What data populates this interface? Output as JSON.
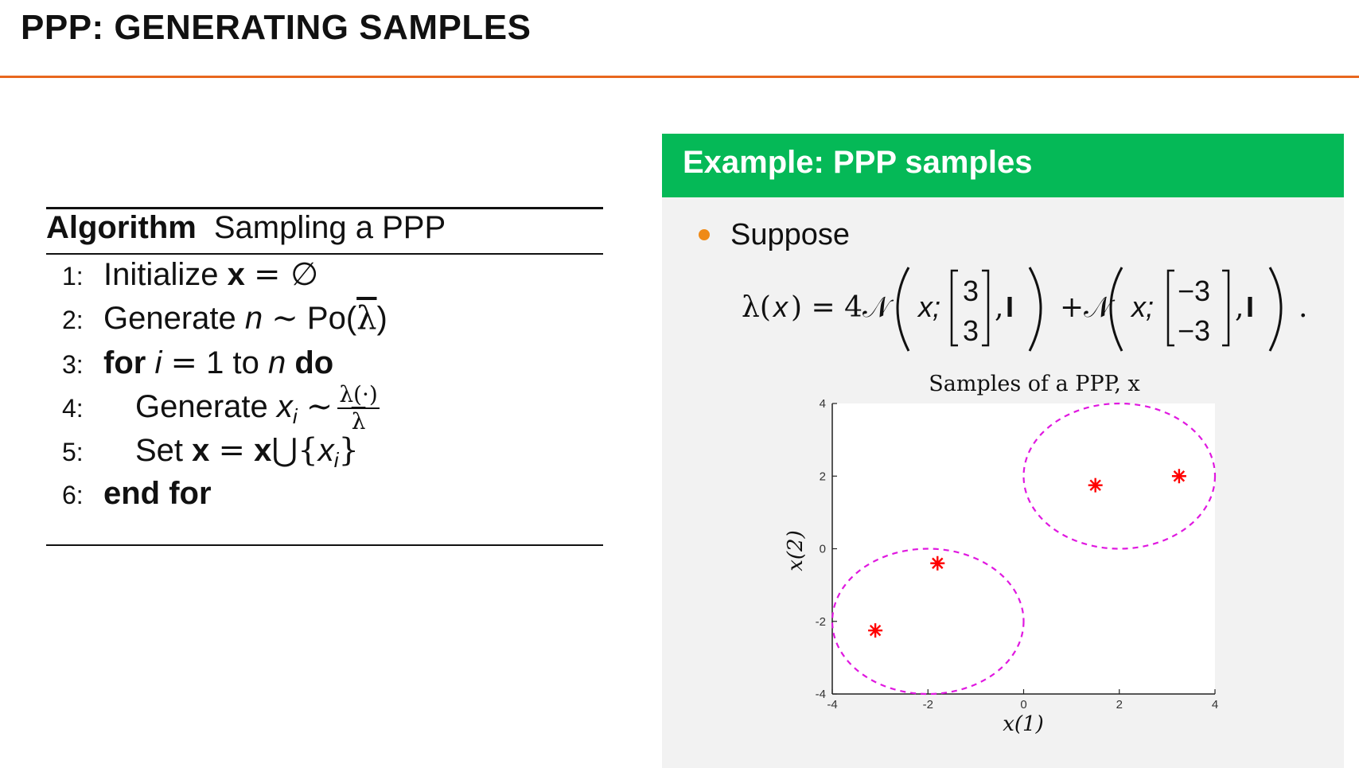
{
  "slide": {
    "title": "PPP: GENERATING SAMPLES",
    "accent_color": "#e8671e"
  },
  "algorithm": {
    "keyword": "Algorithm",
    "name": "Sampling a PPP",
    "lines": [
      {
        "num": "1:",
        "text": "Initialize x = ∅"
      },
      {
        "num": "2:",
        "text": "Generate n ∼ Po(λ̄)"
      },
      {
        "num": "3:",
        "text": "for i = 1 to n do"
      },
      {
        "num": "4:",
        "text": "Generate x_i ∼ λ(·)/λ̄"
      },
      {
        "num": "5:",
        "text": "Set x = x ∪ {x_i}"
      },
      {
        "num": "6:",
        "text": "end for"
      }
    ]
  },
  "example": {
    "header": "Example: PPP samples",
    "header_color": "#05b957",
    "bullet_color": "#ef8a17",
    "suppose": "Suppose",
    "equation": "λ(x) = 4𝒩(x; [3; 3], I) + 𝒩(x; [−3; −3], I)."
  },
  "chart_data": {
    "type": "scatter",
    "title": "Samples of a PPP, x",
    "xlabel": "x(1)",
    "ylabel": "x(2)",
    "xlim": [
      -4,
      4
    ],
    "ylim": [
      -4,
      4
    ],
    "xticks": [
      -4,
      -2,
      0,
      2,
      4
    ],
    "yticks": [
      -4,
      -2,
      0,
      2,
      4
    ],
    "grid": false,
    "marker": "asterisk",
    "marker_color": "#ff0000",
    "points": [
      {
        "x": -3.1,
        "y": -2.25
      },
      {
        "x": -1.8,
        "y": -0.4
      },
      {
        "x": 1.5,
        "y": 1.75
      },
      {
        "x": 3.25,
        "y": 2.0
      }
    ],
    "ellipses": [
      {
        "cx": -2,
        "cy": -2,
        "rx": 2,
        "ry": 2,
        "color": "#e018e0",
        "style": "dashed"
      },
      {
        "cx": 2,
        "cy": 2,
        "rx": 2,
        "ry": 2,
        "color": "#e018e0",
        "style": "dashed"
      }
    ]
  }
}
